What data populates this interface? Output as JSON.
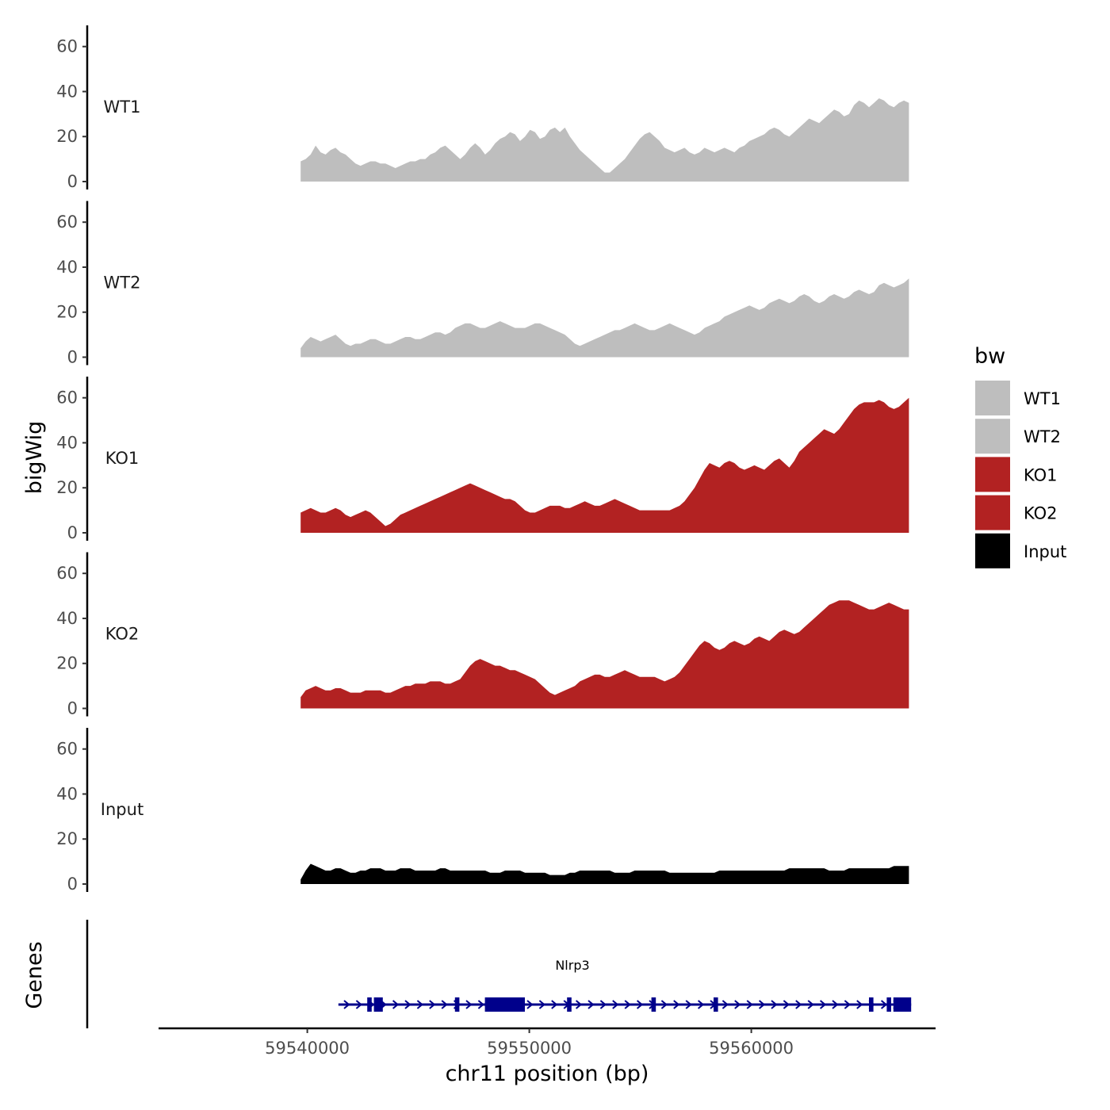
{
  "chart_data": {
    "type": "area",
    "ylabel": "bigWig",
    "genes_label": "Genes",
    "xlabel": "chr11 position (bp)",
    "x_ticks": [
      59540000,
      59550000,
      59560000
    ],
    "x_tick_labels": [
      "59540000",
      "59550000",
      "59560000"
    ],
    "xlim": [
      59533300,
      59568300
    ],
    "ylim": [
      0,
      68
    ],
    "y_ticks": [
      0,
      20,
      40,
      60
    ],
    "y_tick_labels": [
      "0",
      "20",
      "40",
      "60"
    ],
    "legend": {
      "title": "bw",
      "position": "right",
      "entries": [
        {
          "label": "WT1",
          "color": "#bebebe"
        },
        {
          "label": "WT2",
          "color": "#bebebe"
        },
        {
          "label": "KO1",
          "color": "#b22222"
        },
        {
          "label": "KO2",
          "color": "#b22222"
        },
        {
          "label": "Input",
          "color": "#000000"
        }
      ]
    },
    "x_start": 59539700,
    "x_end": 59567100,
    "series": [
      {
        "name": "WT1",
        "color": "#bebebe",
        "values": [
          9,
          10,
          12,
          16,
          13,
          12,
          14,
          15,
          13,
          12,
          10,
          8,
          7,
          8,
          9,
          9,
          8,
          8,
          7,
          6,
          7,
          8,
          9,
          9,
          10,
          10,
          12,
          13,
          15,
          16,
          14,
          12,
          10,
          12,
          15,
          17,
          15,
          12,
          14,
          17,
          19,
          20,
          22,
          21,
          18,
          20,
          23,
          22,
          19,
          20,
          23,
          24,
          22,
          24,
          20,
          17,
          14,
          12,
          10,
          8,
          6,
          4,
          4,
          6,
          8,
          10,
          13,
          16,
          19,
          21,
          22,
          20,
          18,
          15,
          14,
          13,
          14,
          15,
          13,
          12,
          13,
          15,
          14,
          13,
          14,
          15,
          14,
          13,
          15,
          16,
          18,
          19,
          20,
          21,
          23,
          24,
          23,
          21,
          20,
          22,
          24,
          26,
          28,
          27,
          26,
          28,
          30,
          32,
          31,
          29,
          30,
          34,
          36,
          35,
          33,
          35,
          37,
          36,
          34,
          33,
          35,
          36,
          35
        ]
      },
      {
        "name": "WT2",
        "color": "#bebebe",
        "values": [
          4,
          7,
          9,
          8,
          7,
          8,
          9,
          10,
          8,
          6,
          5,
          6,
          6,
          7,
          8,
          8,
          7,
          6,
          6,
          7,
          8,
          9,
          9,
          8,
          8,
          9,
          10,
          11,
          11,
          10,
          11,
          13,
          14,
          15,
          15,
          14,
          13,
          13,
          14,
          15,
          16,
          15,
          14,
          13,
          13,
          13,
          14,
          15,
          15,
          14,
          13,
          12,
          11,
          10,
          8,
          6,
          5,
          6,
          7,
          8,
          9,
          10,
          11,
          12,
          12,
          13,
          14,
          15,
          14,
          13,
          12,
          12,
          13,
          14,
          15,
          14,
          13,
          12,
          11,
          10,
          11,
          13,
          14,
          15,
          16,
          18,
          19,
          20,
          21,
          22,
          23,
          22,
          21,
          22,
          24,
          25,
          26,
          25,
          24,
          25,
          27,
          28,
          27,
          25,
          24,
          25,
          27,
          28,
          27,
          26,
          27,
          29,
          30,
          29,
          28,
          29,
          32,
          33,
          32,
          31,
          32,
          33,
          35
        ]
      },
      {
        "name": "KO1",
        "color": "#b22222",
        "values": [
          9,
          10,
          11,
          10,
          9,
          9,
          10,
          11,
          10,
          8,
          7,
          8,
          9,
          10,
          9,
          7,
          5,
          3,
          4,
          6,
          8,
          9,
          10,
          11,
          12,
          13,
          14,
          15,
          16,
          17,
          18,
          19,
          20,
          21,
          22,
          21,
          20,
          19,
          18,
          17,
          16,
          15,
          15,
          14,
          12,
          10,
          9,
          9,
          10,
          11,
          12,
          12,
          12,
          11,
          11,
          12,
          13,
          14,
          13,
          12,
          12,
          13,
          14,
          15,
          14,
          13,
          12,
          11,
          10,
          10,
          10,
          10,
          10,
          10,
          10,
          11,
          12,
          14,
          17,
          20,
          24,
          28,
          31,
          30,
          29,
          31,
          32,
          31,
          29,
          28,
          29,
          30,
          29,
          28,
          30,
          32,
          33,
          31,
          29,
          32,
          36,
          38,
          40,
          42,
          44,
          46,
          45,
          44,
          46,
          49,
          52,
          55,
          57,
          58,
          58,
          58,
          59,
          58,
          56,
          55,
          56,
          58,
          60
        ]
      },
      {
        "name": "KO2",
        "color": "#b22222",
        "values": [
          5,
          8,
          9,
          10,
          9,
          8,
          8,
          9,
          9,
          8,
          7,
          7,
          7,
          8,
          8,
          8,
          8,
          7,
          7,
          8,
          9,
          10,
          10,
          11,
          11,
          11,
          12,
          12,
          12,
          11,
          11,
          12,
          13,
          16,
          19,
          21,
          22,
          21,
          20,
          19,
          19,
          18,
          17,
          17,
          16,
          15,
          14,
          13,
          11,
          9,
          7,
          6,
          7,
          8,
          9,
          10,
          12,
          13,
          14,
          15,
          15,
          14,
          14,
          15,
          16,
          17,
          16,
          15,
          14,
          14,
          14,
          14,
          13,
          12,
          13,
          14,
          16,
          19,
          22,
          25,
          28,
          30,
          29,
          27,
          26,
          27,
          29,
          30,
          29,
          28,
          29,
          31,
          32,
          31,
          30,
          32,
          34,
          35,
          34,
          33,
          34,
          36,
          38,
          40,
          42,
          44,
          46,
          47,
          48,
          48,
          48,
          47,
          46,
          45,
          44,
          44,
          45,
          46,
          47,
          46,
          45,
          44,
          44
        ]
      },
      {
        "name": "Input",
        "color": "#000000",
        "values": [
          2,
          6,
          9,
          8,
          7,
          6,
          6,
          7,
          7,
          6,
          5,
          5,
          6,
          6,
          7,
          7,
          7,
          6,
          6,
          6,
          7,
          7,
          7,
          6,
          6,
          6,
          6,
          6,
          7,
          7,
          6,
          6,
          6,
          6,
          6,
          6,
          6,
          6,
          5,
          5,
          5,
          6,
          6,
          6,
          6,
          5,
          5,
          5,
          5,
          5,
          4,
          4,
          4,
          4,
          5,
          5,
          6,
          6,
          6,
          6,
          6,
          6,
          6,
          5,
          5,
          5,
          5,
          6,
          6,
          6,
          6,
          6,
          6,
          6,
          5,
          5,
          5,
          5,
          5,
          5,
          5,
          5,
          5,
          5,
          6,
          6,
          6,
          6,
          6,
          6,
          6,
          6,
          6,
          6,
          6,
          6,
          6,
          6,
          7,
          7,
          7,
          7,
          7,
          7,
          7,
          7,
          6,
          6,
          6,
          6,
          7,
          7,
          7,
          7,
          7,
          7,
          7,
          7,
          7,
          8,
          8,
          8,
          8
        ]
      }
    ],
    "gene": {
      "label": "Nlrp3",
      "color": "#00008b",
      "start": 59541400,
      "end": 59567200,
      "strand": "+",
      "exons": [
        [
          59542700,
          59542900
        ],
        [
          59543000,
          59543400
        ],
        [
          59546650,
          59546850
        ],
        [
          59548000,
          59549800
        ],
        [
          59551700,
          59551900
        ],
        [
          59555500,
          59555700
        ],
        [
          59558300,
          59558500
        ],
        [
          59565300,
          59565500
        ],
        [
          59566100,
          59566300
        ],
        [
          59566400,
          59567200
        ]
      ]
    }
  }
}
